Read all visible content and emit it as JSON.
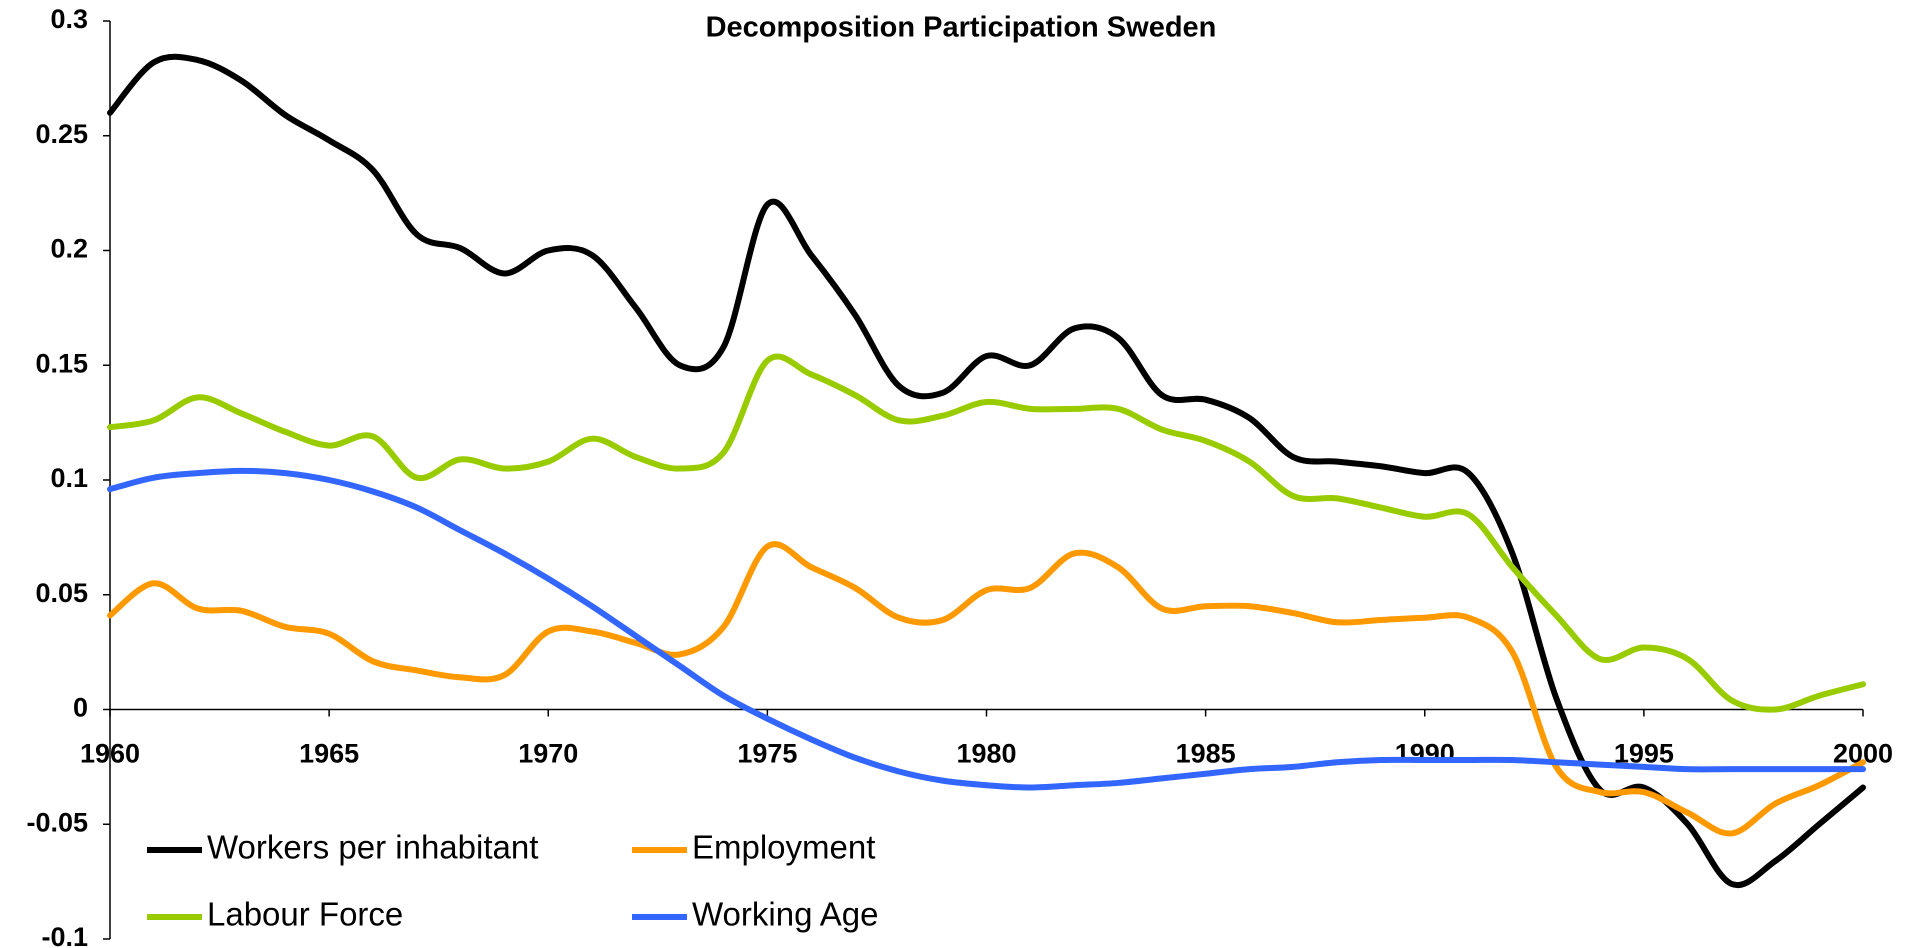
{
  "chart_data": {
    "type": "line",
    "title": "Decomposition Participation Sweden",
    "x": [
      1960,
      1961,
      1962,
      1963,
      1964,
      1965,
      1966,
      1967,
      1968,
      1969,
      1970,
      1971,
      1972,
      1973,
      1974,
      1975,
      1976,
      1977,
      1978,
      1979,
      1980,
      1981,
      1982,
      1983,
      1984,
      1985,
      1986,
      1987,
      1988,
      1989,
      1990,
      1991,
      1992,
      1993,
      1994,
      1995,
      1996,
      1997,
      1998,
      1999,
      2000
    ],
    "series": [
      {
        "name": "Workers per inhabitant",
        "color": "#000000",
        "values": [
          0.26,
          0.282,
          0.283,
          0.274,
          0.259,
          0.248,
          0.235,
          0.207,
          0.201,
          0.19,
          0.2,
          0.198,
          0.175,
          0.15,
          0.158,
          0.22,
          0.198,
          0.172,
          0.141,
          0.138,
          0.154,
          0.15,
          0.166,
          0.162,
          0.137,
          0.135,
          0.127,
          0.11,
          0.108,
          0.106,
          0.103,
          0.103,
          0.068,
          0.005,
          -0.035,
          -0.034,
          -0.05,
          -0.076,
          -0.066,
          -0.05,
          -0.034
        ]
      },
      {
        "name": "Employment",
        "color": "#ff9900",
        "values": [
          0.041,
          0.055,
          0.044,
          0.043,
          0.036,
          0.033,
          0.021,
          0.017,
          0.014,
          0.015,
          0.034,
          0.034,
          0.029,
          0.024,
          0.036,
          0.071,
          0.062,
          0.053,
          0.04,
          0.039,
          0.052,
          0.053,
          0.068,
          0.062,
          0.044,
          0.045,
          0.045,
          0.042,
          0.038,
          0.039,
          0.04,
          0.04,
          0.025,
          -0.025,
          -0.036,
          -0.036,
          -0.045,
          -0.054,
          -0.041,
          -0.033,
          -0.023
        ]
      },
      {
        "name": "Labour Force",
        "color": "#99cc00",
        "values": [
          0.123,
          0.126,
          0.136,
          0.129,
          0.121,
          0.115,
          0.119,
          0.101,
          0.109,
          0.105,
          0.108,
          0.118,
          0.11,
          0.105,
          0.112,
          0.152,
          0.146,
          0.137,
          0.126,
          0.128,
          0.134,
          0.131,
          0.131,
          0.131,
          0.122,
          0.117,
          0.108,
          0.093,
          0.092,
          0.088,
          0.084,
          0.085,
          0.062,
          0.041,
          0.022,
          0.027,
          0.022,
          0.004,
          0.0,
          0.006,
          0.011
        ]
      },
      {
        "name": "Working Age",
        "color": "#3366ff",
        "values": [
          0.096,
          0.101,
          0.103,
          0.104,
          0.103,
          0.1,
          0.095,
          0.088,
          0.078,
          0.068,
          0.057,
          0.045,
          0.032,
          0.019,
          0.006,
          -0.004,
          -0.013,
          -0.021,
          -0.027,
          -0.031,
          -0.033,
          -0.034,
          -0.033,
          -0.032,
          -0.03,
          -0.028,
          -0.026,
          -0.025,
          -0.023,
          -0.022,
          -0.022,
          -0.022,
          -0.022,
          -0.023,
          -0.024,
          -0.025,
          -0.026,
          -0.026,
          -0.026,
          -0.026,
          -0.026
        ]
      }
    ],
    "xlim": [
      1960,
      2000
    ],
    "xticks": [
      1960,
      1965,
      1970,
      1975,
      1980,
      1985,
      1990,
      1995,
      2000
    ],
    "ylim": [
      -0.1,
      0.3
    ],
    "yticks": [
      -0.1,
      -0.05,
      0,
      0.05,
      0.1,
      0.15,
      0.2,
      0.25,
      0.3
    ],
    "grid": false,
    "legend": "lower left"
  }
}
